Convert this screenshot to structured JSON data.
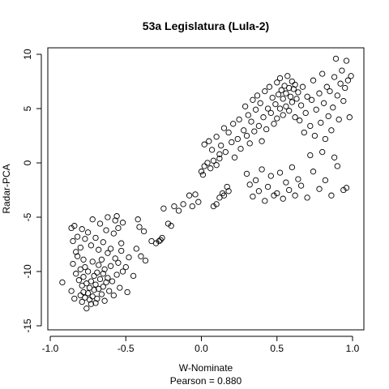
{
  "chart_data": {
    "type": "scatter",
    "title": "53a Legislatura (Lula-2)",
    "xlabel": "W-Nominate",
    "ylabel": "Radar-PCA",
    "subtitle": "Pearson = 0.880",
    "xlim": [
      -1.0,
      1.0
    ],
    "ylim": [
      -15,
      10
    ],
    "xticks": [
      -1.0,
      -0.5,
      0.0,
      0.5,
      1.0
    ],
    "xtick_labels": [
      "-1.0",
      "-0.5",
      "0.0",
      "0.5",
      "1.0"
    ],
    "yticks": [
      -15,
      -10,
      -5,
      0,
      5,
      10
    ],
    "ytick_labels": [
      "-15",
      "-10",
      "-5",
      "0",
      "5",
      "10"
    ],
    "grid": false,
    "marker": "open-circle",
    "series": [
      {
        "points": [
          [
            -0.92,
            -11.0
          ],
          [
            -0.86,
            -11.8
          ],
          [
            -0.85,
            -9.3
          ],
          [
            -0.84,
            -12.5
          ],
          [
            -0.83,
            -10.2
          ],
          [
            -0.82,
            -8.6
          ],
          [
            -0.81,
            -10.8
          ],
          [
            -0.8,
            -9.8
          ],
          [
            -0.8,
            -12.2
          ],
          [
            -0.79,
            -11.3
          ],
          [
            -0.79,
            -12.8
          ],
          [
            -0.78,
            -10.5
          ],
          [
            -0.78,
            -11.9
          ],
          [
            -0.77,
            -12.4
          ],
          [
            -0.77,
            -9.6
          ],
          [
            -0.76,
            -13.4
          ],
          [
            -0.76,
            -11.1
          ],
          [
            -0.75,
            -12.0
          ],
          [
            -0.75,
            -10.0
          ],
          [
            -0.74,
            -12.6
          ],
          [
            -0.74,
            -11.5
          ],
          [
            -0.73,
            -13.0
          ],
          [
            -0.73,
            -10.9
          ],
          [
            -0.72,
            -12.3
          ],
          [
            -0.72,
            -9.1
          ],
          [
            -0.71,
            -11.7
          ],
          [
            -0.71,
            -10.4
          ],
          [
            -0.7,
            -12.9
          ],
          [
            -0.7,
            -11.2
          ],
          [
            -0.69,
            -10.1
          ],
          [
            -0.69,
            -12.5
          ],
          [
            -0.68,
            -11.6
          ],
          [
            -0.68,
            -9.4
          ],
          [
            -0.67,
            -10.7
          ],
          [
            -0.66,
            -12.1
          ],
          [
            -0.66,
            -8.9
          ],
          [
            -0.65,
            -11.4
          ],
          [
            -0.65,
            -10.2
          ],
          [
            -0.64,
            -9.8
          ],
          [
            -0.64,
            -12.7
          ],
          [
            -0.63,
            -11.0
          ],
          [
            -0.62,
            -10.6
          ],
          [
            -0.62,
            -8.3
          ],
          [
            -0.61,
            -11.8
          ],
          [
            -0.6,
            -9.5
          ],
          [
            -0.59,
            -10.9
          ],
          [
            -0.58,
            -12.2
          ],
          [
            -0.57,
            -8.8
          ],
          [
            -0.56,
            -10.3
          ],
          [
            -0.55,
            -9.2
          ],
          [
            -0.54,
            -11.5
          ],
          [
            -0.53,
            -8.1
          ],
          [
            -0.52,
            -10.0
          ],
          [
            -0.5,
            -9.6
          ],
          [
            -0.49,
            -11.9
          ],
          [
            -0.48,
            -8.7
          ],
          [
            -0.45,
            -10.4
          ],
          [
            -0.43,
            -7.9
          ],
          [
            -0.4,
            -8.6
          ],
          [
            -0.37,
            -9.0
          ],
          [
            -0.86,
            -6.0
          ],
          [
            -0.85,
            -7.2
          ],
          [
            -0.84,
            -5.8
          ],
          [
            -0.83,
            -8.2
          ],
          [
            -0.82,
            -6.8
          ],
          [
            -0.8,
            -7.8
          ],
          [
            -0.79,
            -6.1
          ],
          [
            -0.78,
            -8.9
          ],
          [
            -0.77,
            -7.0
          ],
          [
            -0.75,
            -6.4
          ],
          [
            -0.73,
            -7.6
          ],
          [
            -0.72,
            -5.2
          ],
          [
            -0.7,
            -6.9
          ],
          [
            -0.68,
            -8.0
          ],
          [
            -0.67,
            -5.6
          ],
          [
            -0.65,
            -7.3
          ],
          [
            -0.63,
            -6.2
          ],
          [
            -0.62,
            -5.0
          ],
          [
            -0.6,
            -7.9
          ],
          [
            -0.58,
            -6.5
          ],
          [
            -0.57,
            -5.3
          ],
          [
            -0.56,
            -4.9
          ],
          [
            -0.55,
            -6.0
          ],
          [
            -0.53,
            -7.4
          ],
          [
            -0.52,
            -5.5
          ],
          [
            -0.42,
            -5.2
          ],
          [
            -0.41,
            -5.9
          ],
          [
            -0.38,
            -6.3
          ],
          [
            -0.33,
            -7.2
          ],
          [
            -0.3,
            -7.4
          ],
          [
            -0.28,
            -7.2
          ],
          [
            -0.27,
            -7.1
          ],
          [
            -0.26,
            -6.9
          ],
          [
            -0.25,
            -4.2
          ],
          [
            -0.22,
            -5.6
          ],
          [
            -0.2,
            -5.8
          ],
          [
            -0.18,
            -4.0
          ],
          [
            -0.15,
            -4.4
          ],
          [
            -0.12,
            -3.8
          ],
          [
            -0.08,
            -3.0
          ],
          [
            -0.06,
            -4.0
          ],
          [
            -0.04,
            -2.9
          ],
          [
            -0.02,
            -3.6
          ],
          [
            0.0,
            -0.8
          ],
          [
            0.01,
            -1.1
          ],
          [
            0.02,
            -0.3
          ],
          [
            0.04,
            0.0
          ],
          [
            0.06,
            -0.5
          ],
          [
            0.08,
            0.2
          ],
          [
            0.1,
            -0.2
          ],
          [
            0.12,
            0.4
          ],
          [
            0.08,
            -4.0
          ],
          [
            0.1,
            -3.8
          ],
          [
            0.12,
            -3.2
          ],
          [
            0.14,
            -2.8
          ],
          [
            0.15,
            -3.0
          ],
          [
            0.17,
            -2.2
          ],
          [
            0.18,
            -2.6
          ],
          [
            0.02,
            1.7
          ],
          [
            0.05,
            2.0
          ],
          [
            0.07,
            1.2
          ],
          [
            0.1,
            2.4
          ],
          [
            0.12,
            0.8
          ],
          [
            0.13,
            1.6
          ],
          [
            0.15,
            3.2
          ],
          [
            0.16,
            1.0
          ],
          [
            0.18,
            2.8
          ],
          [
            0.2,
            1.9
          ],
          [
            0.21,
            3.6
          ],
          [
            0.22,
            0.5
          ],
          [
            0.24,
            2.2
          ],
          [
            0.25,
            4.0
          ],
          [
            0.26,
            1.3
          ],
          [
            0.28,
            3.0
          ],
          [
            0.29,
            5.2
          ],
          [
            0.3,
            2.5
          ],
          [
            0.31,
            4.4
          ],
          [
            0.32,
            1.8
          ],
          [
            0.33,
            3.8
          ],
          [
            0.34,
            5.8
          ],
          [
            0.35,
            2.9
          ],
          [
            0.36,
            4.9
          ],
          [
            0.37,
            6.2
          ],
          [
            0.38,
            3.4
          ],
          [
            0.39,
            5.5
          ],
          [
            0.4,
            2.0
          ],
          [
            0.41,
            4.2
          ],
          [
            0.42,
            6.6
          ],
          [
            0.43,
            3.1
          ],
          [
            0.44,
            5.0
          ],
          [
            0.45,
            7.0
          ],
          [
            0.46,
            4.6
          ],
          [
            0.47,
            6.0
          ],
          [
            0.48,
            3.6
          ],
          [
            0.49,
            5.4
          ],
          [
            0.5,
            7.4
          ],
          [
            0.5,
            4.1
          ],
          [
            0.51,
            6.3
          ],
          [
            0.52,
            5.0
          ],
          [
            0.52,
            7.8
          ],
          [
            0.53,
            6.7
          ],
          [
            0.54,
            4.4
          ],
          [
            0.54,
            5.9
          ],
          [
            0.55,
            7.1
          ],
          [
            0.56,
            6.4
          ],
          [
            0.56,
            5.2
          ],
          [
            0.57,
            8.0
          ],
          [
            0.58,
            6.9
          ],
          [
            0.58,
            4.8
          ],
          [
            0.59,
            6.1
          ],
          [
            0.6,
            7.5
          ],
          [
            0.6,
            5.6
          ],
          [
            0.61,
            6.8
          ],
          [
            0.62,
            4.2
          ],
          [
            0.62,
            7.2
          ],
          [
            0.63,
            5.9
          ],
          [
            0.64,
            6.5
          ],
          [
            0.65,
            3.9
          ],
          [
            0.66,
            5.3
          ],
          [
            0.67,
            7.0
          ],
          [
            0.68,
            2.8
          ],
          [
            0.69,
            4.6
          ],
          [
            0.7,
            6.1
          ],
          [
            0.72,
            3.4
          ],
          [
            0.73,
            5.8
          ],
          [
            0.74,
            7.6
          ],
          [
            0.75,
            2.5
          ],
          [
            0.76,
            4.9
          ],
          [
            0.78,
            6.4
          ],
          [
            0.79,
            3.7
          ],
          [
            0.8,
            8.2
          ],
          [
            0.81,
            5.5
          ],
          [
            0.82,
            2.2
          ],
          [
            0.83,
            7.0
          ],
          [
            0.84,
            4.3
          ],
          [
            0.85,
            6.6
          ],
          [
            0.86,
            3.0
          ],
          [
            0.87,
            5.1
          ],
          [
            0.88,
            7.9
          ],
          [
            0.89,
            9.6
          ],
          [
            0.9,
            6.2
          ],
          [
            0.91,
            4.0
          ],
          [
            0.92,
            7.3
          ],
          [
            0.93,
            8.5
          ],
          [
            0.94,
            5.7
          ],
          [
            0.95,
            6.9
          ],
          [
            0.96,
            9.4
          ],
          [
            0.97,
            7.6
          ],
          [
            0.98,
            4.2
          ],
          [
            0.99,
            8.0
          ],
          [
            0.3,
            -1.0
          ],
          [
            0.32,
            -2.0
          ],
          [
            0.34,
            -3.1
          ],
          [
            0.36,
            -1.6
          ],
          [
            0.38,
            -2.6
          ],
          [
            0.4,
            -0.6
          ],
          [
            0.42,
            -3.5
          ],
          [
            0.44,
            -2.2
          ],
          [
            0.46,
            -1.2
          ],
          [
            0.48,
            -3.0
          ],
          [
            0.5,
            -2.8
          ],
          [
            0.52,
            -0.9
          ],
          [
            0.54,
            -3.3
          ],
          [
            0.56,
            -1.8
          ],
          [
            0.58,
            -2.5
          ],
          [
            0.6,
            -0.4
          ],
          [
            0.62,
            -3.0
          ],
          [
            0.64,
            -1.5
          ],
          [
            0.66,
            -2.1
          ],
          [
            0.7,
            -3.2
          ],
          [
            0.74,
            -0.8
          ],
          [
            0.78,
            -2.4
          ],
          [
            0.82,
            -1.6
          ],
          [
            0.86,
            -3.0
          ],
          [
            0.9,
            -0.3
          ],
          [
            0.94,
            -2.5
          ],
          [
            0.96,
            -2.3
          ],
          [
            0.88,
            0.5
          ],
          [
            0.8,
            1.0
          ],
          [
            0.72,
            0.7
          ]
        ]
      }
    ]
  }
}
